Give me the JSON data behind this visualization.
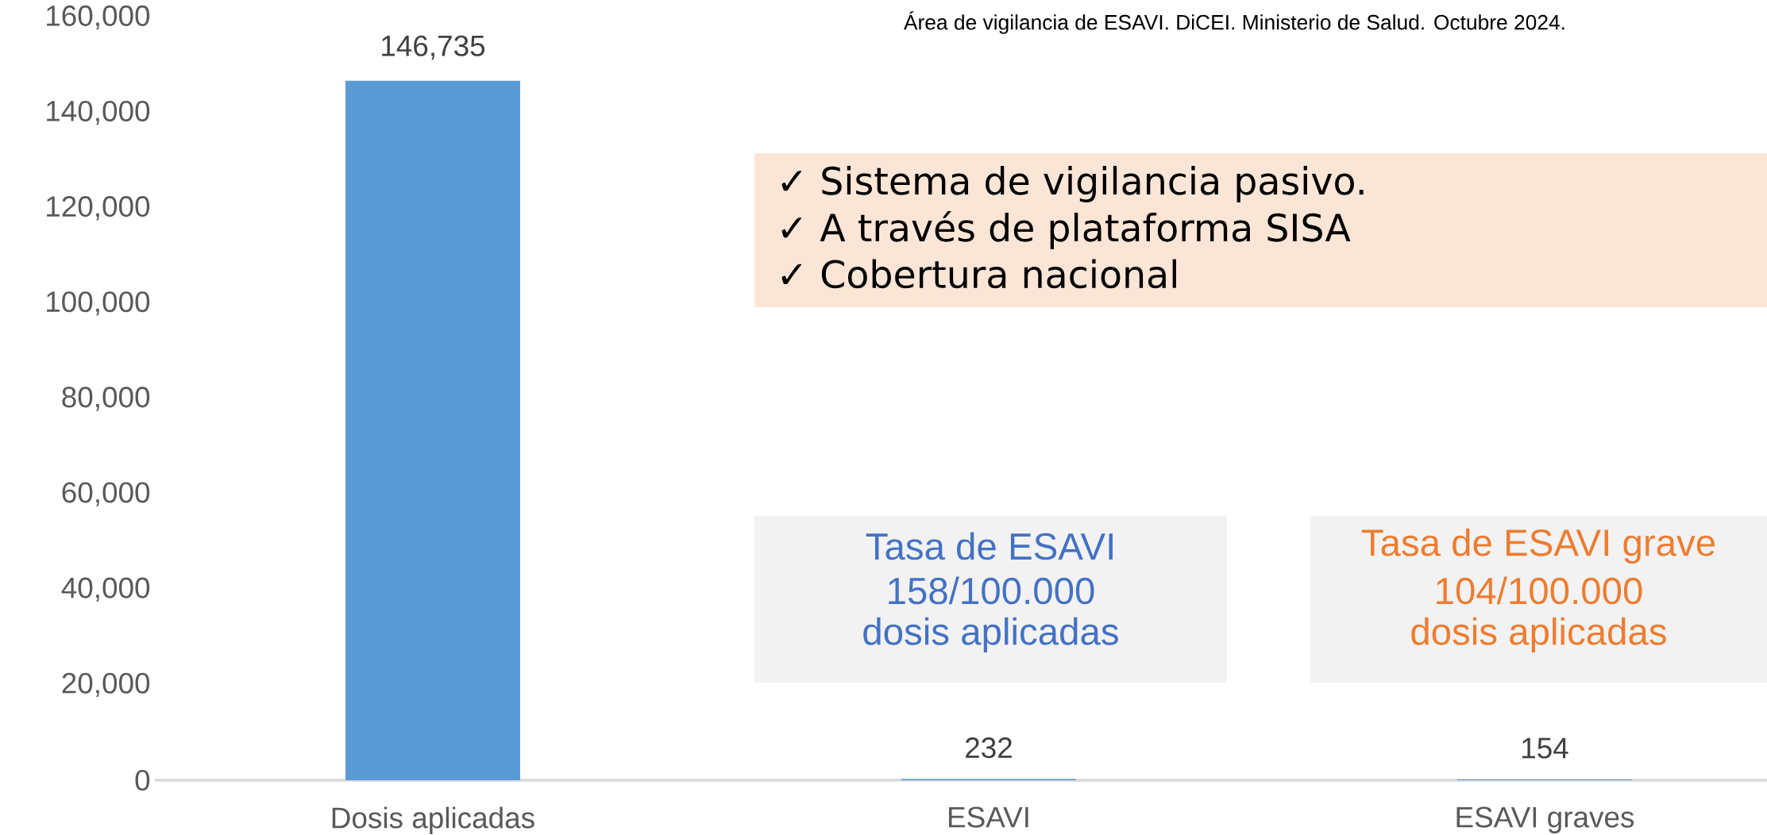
{
  "chart_data": {
    "type": "bar",
    "categories": [
      "Dosis aplicadas",
      "ESAVI",
      "ESAVI graves"
    ],
    "values": [
      146735,
      232,
      154
    ],
    "value_labels": [
      "146,735",
      "232",
      "154"
    ],
    "color": "#5b9bd5",
    "ylim": [
      0,
      160000
    ],
    "yticks": [
      {
        "value": 0,
        "label": "0"
      },
      {
        "value": 20000,
        "label": "20,000"
      },
      {
        "value": 40000,
        "label": "40,000"
      },
      {
        "value": 60000,
        "label": "60,000"
      },
      {
        "value": 80000,
        "label": "80,000"
      },
      {
        "value": 100000,
        "label": "100,000"
      },
      {
        "value": 120000,
        "label": "120,000"
      },
      {
        "value": 140000,
        "label": "140,000"
      },
      {
        "value": 160000,
        "label": "160,000"
      }
    ],
    "grid": false,
    "annotations": [
      "Área de vigilancia de ESAVI. DiCEI. Ministerio de Salud. Octubre 2024.",
      "✓ Sistema de vigilancia pasivo.",
      "✓ A través de plataforma SISA",
      "✓ Cobertura nacional",
      "Tasa de ESAVI",
      "158/100.000",
      "dosis aplicadas",
      "Tasa de ESAVI grave",
      "104/100.000",
      "dosis aplicadas"
    ]
  }
}
